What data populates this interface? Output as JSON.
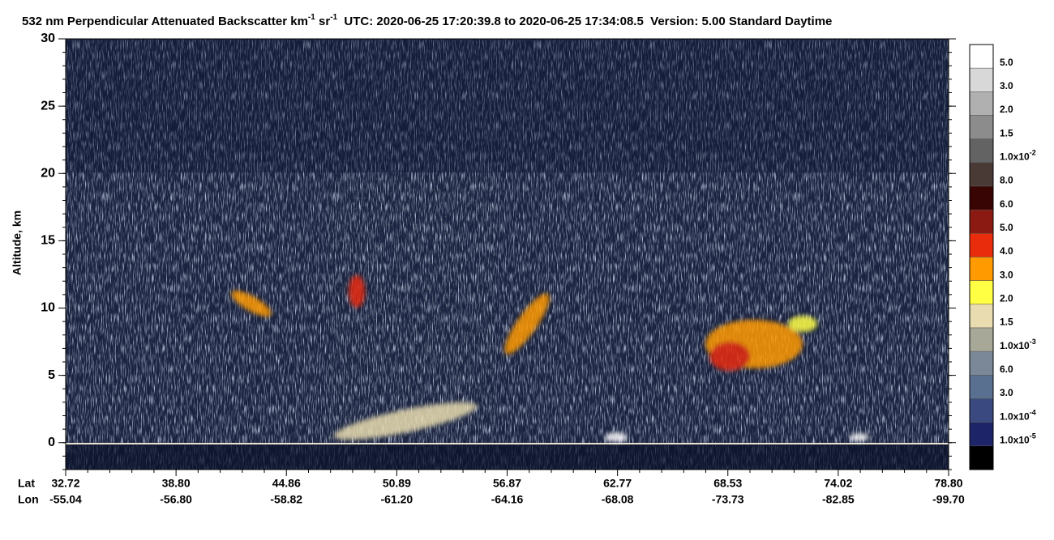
{
  "chart_data": {
    "type": "curtain",
    "title": [
      "532 nm Perpendicular Attenuated Backscatter km",
      "-1",
      " sr",
      "-1",
      "  UTC: 2020-06-25 17:20:39.8 to 2020-06-25 17:34:08.5  Version: 5.00 Standard Daytime"
    ],
    "ylabel": "Altitude, km",
    "ylim": [
      -2,
      30
    ],
    "yticks": [
      0,
      5,
      10,
      15,
      20,
      25,
      30
    ],
    "x_row_labels": [
      "Lat",
      "Lon"
    ],
    "lat": [
      "32.72",
      "38.80",
      "44.86",
      "50.89",
      "56.87",
      "62.77",
      "68.53",
      "74.02",
      "78.80"
    ],
    "lon": [
      "-55.04",
      "-56.80",
      "-58.82",
      "-61.20",
      "-64.16",
      "-68.08",
      "-73.73",
      "-82.85",
      "-99.70"
    ],
    "colorbar": {
      "colors": [
        "#ffffff",
        "#d8d8d8",
        "#b0b0b0",
        "#8c8c8c",
        "#636363",
        "#4a3a36",
        "#380404",
        "#8a1a12",
        "#e82c0c",
        "#ff9a00",
        "#ffff44",
        "#e8dcb0",
        "#a8a898",
        "#7a8898",
        "#5a7090",
        "#3a4a80",
        "#1e2468",
        "#000000"
      ],
      "labels": [
        {
          "text": "5.0"
        },
        {
          "text": "3.0"
        },
        {
          "text": "2.0"
        },
        {
          "text": "1.5"
        },
        {
          "text": "1.0x10",
          "sup": "-2"
        },
        {
          "text": "8.0"
        },
        {
          "text": "6.0"
        },
        {
          "text": "5.0"
        },
        {
          "text": "4.0"
        },
        {
          "text": "3.0"
        },
        {
          "text": "2.0"
        },
        {
          "text": "1.5"
        },
        {
          "text": "1.0x10",
          "sup": "-3"
        },
        {
          "text": "6.0"
        },
        {
          "text": "3.0"
        },
        {
          "text": "1.0x10",
          "sup": "-4"
        },
        {
          "text": "1.0x10",
          "sup": "-5"
        }
      ]
    }
  }
}
